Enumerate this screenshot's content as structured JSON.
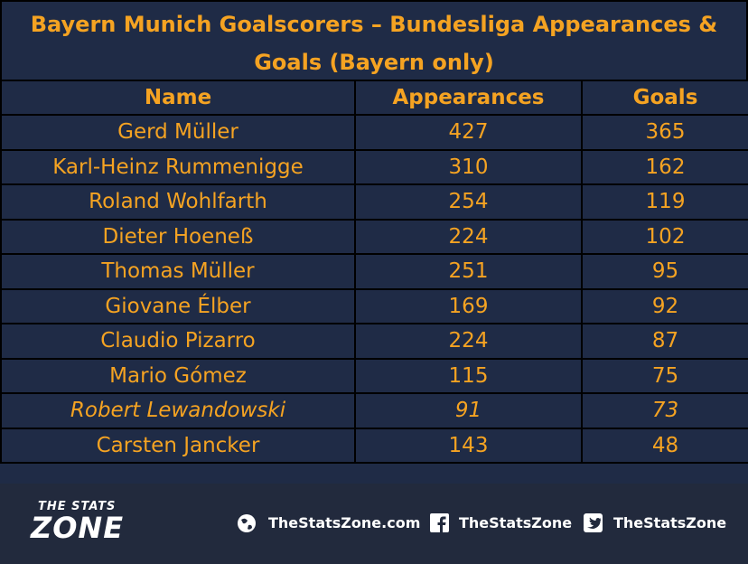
{
  "header": {
    "title": "Bayern Munich Goalscorers – Bundesliga Appearances & Goals (Bayern only)"
  },
  "table": {
    "columns": [
      "Name",
      "Appearances",
      "Goals"
    ],
    "rows": [
      [
        "Gerd Müller",
        427,
        365
      ],
      [
        "Karl-Heinz Rummenigge",
        310,
        162
      ],
      [
        "Roland Wohlfarth",
        254,
        119
      ],
      [
        "Dieter Hoeneß",
        224,
        102
      ],
      [
        "Thomas Müller",
        251,
        95
      ],
      [
        "Giovane Élber",
        169,
        92
      ],
      [
        "Claudio Pizarro",
        224,
        87
      ],
      [
        "Mario Gómez",
        115,
        75
      ],
      [
        "Robert Lewandowski",
        91,
        73
      ],
      [
        "Carsten Jancker",
        143,
        48
      ]
    ]
  },
  "footer": {
    "logo_top": "THE STATS",
    "logo_bottom": "ZONE",
    "website": "TheStatsZone.com",
    "facebook": "TheStatsZone",
    "twitter": "TheStatsZone"
  }
}
